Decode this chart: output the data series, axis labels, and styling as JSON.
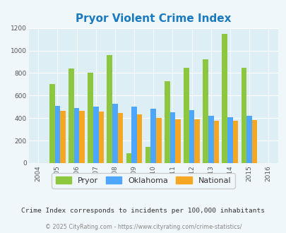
{
  "title": "Pryor Violent Crime Index",
  "years": [
    2005,
    2006,
    2007,
    2008,
    2009,
    2010,
    2011,
    2012,
    2013,
    2014,
    2015
  ],
  "pryor": [
    700,
    840,
    805,
    960,
    90,
    145,
    725,
    845,
    920,
    1150,
    845
  ],
  "oklahoma": [
    510,
    490,
    500,
    525,
    500,
    480,
    450,
    470,
    420,
    405,
    420
  ],
  "national": [
    465,
    465,
    460,
    448,
    430,
    400,
    390,
    390,
    375,
    375,
    385
  ],
  "pryor_color": "#8dc63f",
  "oklahoma_color": "#4da6ff",
  "national_color": "#f5a623",
  "bg_color": "#f0f7fa",
  "plot_bg": "#deeef5",
  "title_color": "#1a7abf",
  "ylim": [
    0,
    1200
  ],
  "yticks": [
    0,
    200,
    400,
    600,
    800,
    1000,
    1200
  ],
  "xticks": [
    2004,
    2005,
    2006,
    2007,
    2008,
    2009,
    2010,
    2011,
    2012,
    2013,
    2014,
    2015,
    2016
  ],
  "subtitle": "Crime Index corresponds to incidents per 100,000 inhabitants",
  "footer": "© 2025 CityRating.com - https://www.cityrating.com/crime-statistics/",
  "legend_labels": [
    "Pryor",
    "Oklahoma",
    "National"
  ],
  "bar_width": 0.28
}
